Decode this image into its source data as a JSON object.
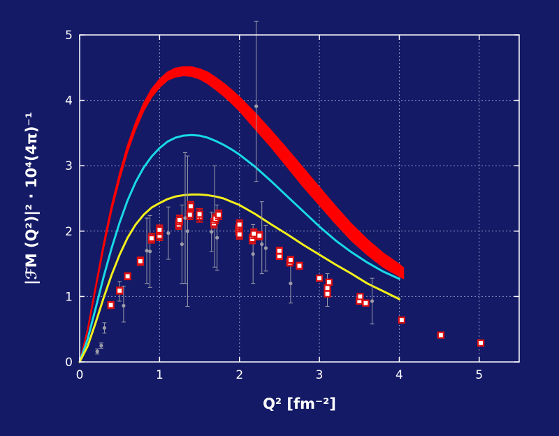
{
  "chart_data": {
    "type": "scatter",
    "title": "",
    "xlabel": "Q² [fm⁻²]",
    "ylabel": "|ℱM (Q²)|² · 10⁴(4π)⁻¹",
    "xlim": [
      0,
      5.5
    ],
    "ylim": [
      0,
      5
    ],
    "xticks": [
      "0",
      "1",
      "2",
      "3",
      "4",
      "5"
    ],
    "yticks": [
      "0",
      "1",
      "2",
      "3",
      "4",
      "5"
    ],
    "grid": true,
    "legend": "none",
    "colors": {
      "background": "#141a66",
      "plot_border": "#ffffff",
      "grid": "#8f96c6",
      "band": "#ff0000",
      "cyan_curve": "#19d9e6",
      "yellow_curve": "#f2ef1a",
      "square_marker": "#e01010",
      "gray_marker": "#9c9ca8"
    },
    "band": {
      "x": [
        0,
        0.1,
        0.2,
        0.3,
        0.4,
        0.5,
        0.6,
        0.7,
        0.8,
        0.9,
        1.0,
        1.1,
        1.2,
        1.3,
        1.4,
        1.5,
        1.6,
        1.7,
        1.8,
        1.9,
        2.0,
        2.2,
        2.4,
        2.6,
        2.8,
        3.0,
        3.2,
        3.4,
        3.6,
        3.8,
        4.0,
        4.05
      ],
      "lower": [
        0,
        0.48,
        1.12,
        1.75,
        2.32,
        2.8,
        3.22,
        3.56,
        3.84,
        4.05,
        4.2,
        4.31,
        4.36,
        4.38,
        4.37,
        4.33,
        4.26,
        4.17,
        4.07,
        3.96,
        3.84,
        3.56,
        3.28,
        2.98,
        2.68,
        2.4,
        2.12,
        1.86,
        1.64,
        1.45,
        1.31,
        1.28
      ],
      "upper": [
        0,
        0.5,
        1.16,
        1.81,
        2.39,
        2.88,
        3.31,
        3.66,
        3.95,
        4.17,
        4.32,
        4.43,
        4.49,
        4.51,
        4.51,
        4.48,
        4.43,
        4.35,
        4.26,
        4.16,
        4.05,
        3.8,
        3.53,
        3.25,
        2.96,
        2.67,
        2.38,
        2.11,
        1.87,
        1.66,
        1.49,
        1.44
      ]
    },
    "series": [
      {
        "color": "#19d9e6",
        "x": [
          0,
          0.1,
          0.2,
          0.3,
          0.4,
          0.5,
          0.6,
          0.7,
          0.8,
          0.9,
          1.0,
          1.1,
          1.2,
          1.3,
          1.4,
          1.5,
          1.6,
          1.7,
          1.8,
          1.9,
          2.0,
          2.2,
          2.4,
          2.6,
          2.8,
          3.0,
          3.2,
          3.4,
          3.6,
          3.8,
          4.0
        ],
        "y": [
          0,
          0.35,
          0.82,
          1.3,
          1.74,
          2.13,
          2.47,
          2.75,
          2.97,
          3.14,
          3.27,
          3.37,
          3.43,
          3.46,
          3.47,
          3.46,
          3.43,
          3.38,
          3.32,
          3.25,
          3.17,
          2.98,
          2.76,
          2.53,
          2.3,
          2.07,
          1.86,
          1.68,
          1.52,
          1.38,
          1.27
        ]
      },
      {
        "color": "#f2ef1a",
        "x": [
          0,
          0.1,
          0.2,
          0.3,
          0.4,
          0.5,
          0.6,
          0.7,
          0.8,
          0.9,
          1.0,
          1.1,
          1.2,
          1.3,
          1.4,
          1.5,
          1.6,
          1.7,
          1.8,
          1.9,
          2.0,
          2.2,
          2.4,
          2.6,
          2.8,
          3.0,
          3.2,
          3.4,
          3.6,
          3.8,
          4.0
        ],
        "y": [
          0,
          0.24,
          0.6,
          0.98,
          1.33,
          1.64,
          1.9,
          2.1,
          2.25,
          2.36,
          2.43,
          2.49,
          2.53,
          2.55,
          2.56,
          2.56,
          2.55,
          2.53,
          2.5,
          2.45,
          2.4,
          2.26,
          2.1,
          1.95,
          1.79,
          1.64,
          1.49,
          1.35,
          1.2,
          1.08,
          0.96
        ]
      }
    ],
    "square_points": [
      {
        "x": 0.39,
        "y": 0.87,
        "err": 0.05
      },
      {
        "x": 0.5,
        "y": 1.09,
        "err": 0.05
      },
      {
        "x": 0.6,
        "y": 1.31,
        "err": 0.05
      },
      {
        "x": 0.76,
        "y": 1.54,
        "err": 0.06
      },
      {
        "x": 0.9,
        "y": 1.89,
        "err": 0.07
      },
      {
        "x": 1.0,
        "y": 1.93,
        "err": 0.07
      },
      {
        "x": 1.0,
        "y": 2.02,
        "err": 0.07
      },
      {
        "x": 1.24,
        "y": 2.1,
        "err": 0.07
      },
      {
        "x": 1.25,
        "y": 2.17,
        "err": 0.07
      },
      {
        "x": 1.38,
        "y": 2.25,
        "err": 0.07
      },
      {
        "x": 1.39,
        "y": 2.38,
        "err": 0.07
      },
      {
        "x": 1.5,
        "y": 2.22,
        "err": 0.08
      },
      {
        "x": 1.5,
        "y": 2.26,
        "err": 0.08
      },
      {
        "x": 1.68,
        "y": 2.12,
        "err": 0.07
      },
      {
        "x": 1.7,
        "y": 2.19,
        "err": 0.07
      },
      {
        "x": 1.74,
        "y": 2.25,
        "err": 0.07
      },
      {
        "x": 1.99,
        "y": 2.02,
        "err": 0.07
      },
      {
        "x": 2.0,
        "y": 1.95,
        "err": 0.07
      },
      {
        "x": 2.0,
        "y": 2.1,
        "err": 0.07
      },
      {
        "x": 2.16,
        "y": 1.88,
        "err": 0.07
      },
      {
        "x": 2.18,
        "y": 1.96,
        "err": 0.07
      },
      {
        "x": 2.25,
        "y": 1.93,
        "err": 0.06
      },
      {
        "x": 2.5,
        "y": 1.62,
        "err": 0.05
      },
      {
        "x": 2.5,
        "y": 1.7,
        "err": 0.05
      },
      {
        "x": 2.63,
        "y": 1.52,
        "err": 0.05
      },
      {
        "x": 2.64,
        "y": 1.56,
        "err": 0.05
      },
      {
        "x": 2.75,
        "y": 1.47,
        "err": 0.05
      },
      {
        "x": 3.0,
        "y": 1.28,
        "err": 0.04
      },
      {
        "x": 3.1,
        "y": 1.04,
        "err": 0.04
      },
      {
        "x": 3.1,
        "y": 1.13,
        "err": 0.04
      },
      {
        "x": 3.12,
        "y": 1.22,
        "err": 0.04
      },
      {
        "x": 3.5,
        "y": 0.93,
        "err": 0.03
      },
      {
        "x": 3.51,
        "y": 1.0,
        "err": 0.03
      },
      {
        "x": 3.58,
        "y": 0.9,
        "err": 0.03
      },
      {
        "x": 4.03,
        "y": 0.64,
        "err": 0.0
      },
      {
        "x": 4.52,
        "y": 0.41,
        "err": 0.0
      },
      {
        "x": 5.02,
        "y": 0.29,
        "err": 0.0
      }
    ],
    "gray_points": [
      {
        "x": 0.22,
        "y": 0.16,
        "lo": 0.04,
        "hi": 0.04
      },
      {
        "x": 0.27,
        "y": 0.25,
        "lo": 0.04,
        "hi": 0.04
      },
      {
        "x": 0.31,
        "y": 0.52,
        "lo": 0.08,
        "hi": 0.08
      },
      {
        "x": 0.5,
        "y": 1.08,
        "lo": 0.15,
        "hi": 0.15
      },
      {
        "x": 0.55,
        "y": 0.86,
        "lo": 0.25,
        "hi": 0.3
      },
      {
        "x": 0.84,
        "y": 1.7,
        "lo": 0.5,
        "hi": 0.5
      },
      {
        "x": 0.88,
        "y": 1.69,
        "lo": 0.55,
        "hi": 0.55
      },
      {
        "x": 1.11,
        "y": 1.97,
        "lo": 0.4,
        "hi": 0.4
      },
      {
        "x": 1.28,
        "y": 1.8,
        "lo": 0.6,
        "hi": 0.6
      },
      {
        "x": 1.32,
        "y": 2.2,
        "lo": 1.0,
        "hi": 1.0
      },
      {
        "x": 1.35,
        "y": 2.0,
        "lo": 1.15,
        "hi": 1.15
      },
      {
        "x": 1.65,
        "y": 1.99,
        "lo": 0.3,
        "hi": 0.3
      },
      {
        "x": 1.69,
        "y": 2.15,
        "lo": 0.7,
        "hi": 0.85
      },
      {
        "x": 1.72,
        "y": 1.9,
        "lo": 0.5,
        "hi": 0.5
      },
      {
        "x": 2.17,
        "y": 1.65,
        "lo": 0.45,
        "hi": 0.45
      },
      {
        "x": 2.21,
        "y": 3.91,
        "lo": 1.15,
        "hi": 1.3
      },
      {
        "x": 2.28,
        "y": 1.8,
        "lo": 0.45,
        "hi": 0.65
      },
      {
        "x": 2.33,
        "y": 1.74,
        "lo": 0.35,
        "hi": 0.35
      },
      {
        "x": 2.64,
        "y": 1.2,
        "lo": 0.3,
        "hi": 0.3
      },
      {
        "x": 3.1,
        "y": 1.1,
        "lo": 0.25,
        "hi": 0.25
      },
      {
        "x": 3.66,
        "y": 0.93,
        "lo": 0.35,
        "hi": 0.35
      }
    ]
  }
}
